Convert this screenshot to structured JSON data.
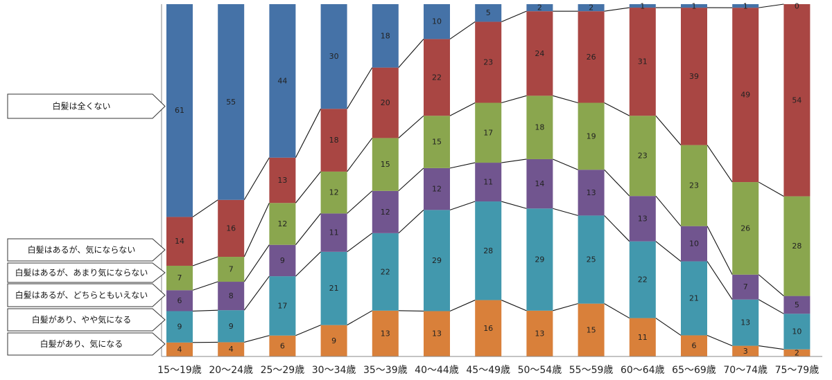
{
  "chart_data": {
    "type": "bar",
    "stacked": true,
    "percent_stacked": true,
    "categories": [
      "15〜19歳",
      "20〜24歳",
      "25〜29歳",
      "30〜34歳",
      "35〜39歳",
      "40〜44歳",
      "45〜49歳",
      "50〜54歳",
      "55〜59歳",
      "60〜64歳",
      "65〜69歳",
      "70〜74歳",
      "75〜79歳"
    ],
    "series": [
      {
        "name": "白髪があり、気になる",
        "color": "#d9803a",
        "values": [
          4,
          4,
          6,
          9,
          13,
          13,
          16,
          13,
          15,
          11,
          6,
          3,
          2
        ]
      },
      {
        "name": "白髪があり、やや気になる",
        "color": "#4298ad",
        "values": [
          9,
          9,
          17,
          21,
          22,
          29,
          28,
          29,
          25,
          22,
          21,
          13,
          10
        ]
      },
      {
        "name": "白髪はあるが、どちらともいえない",
        "color": "#71558f",
        "values": [
          6,
          8,
          9,
          11,
          12,
          12,
          11,
          14,
          13,
          13,
          10,
          7,
          5
        ]
      },
      {
        "name": "白髪はあるが、あまり気にならない",
        "color": "#8aa64e",
        "values": [
          7,
          7,
          12,
          12,
          15,
          15,
          17,
          18,
          19,
          23,
          23,
          26,
          28
        ]
      },
      {
        "name": "白髪はあるが、気にならない",
        "color": "#a94643",
        "values": [
          14,
          16,
          13,
          18,
          20,
          22,
          23,
          24,
          26,
          31,
          39,
          49,
          54
        ]
      },
      {
        "name": "白髪は全くない",
        "color": "#4572a7",
        "values": [
          61,
          55,
          44,
          30,
          18,
          10,
          5,
          2,
          2,
          1,
          1,
          1,
          0
        ]
      }
    ],
    "legend": "left callouts",
    "ylim": [
      0,
      100
    ],
    "grid": false
  }
}
